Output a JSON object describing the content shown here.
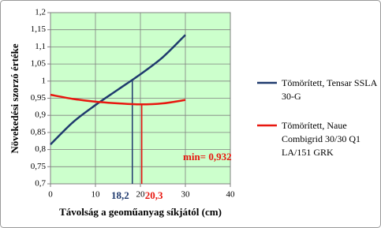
{
  "chart_data": {
    "type": "line",
    "x_label": "Távolság a geoműanyag síkjától (cm)",
    "y_label": "Növekedési szorzó értéke",
    "x": [
      0,
      5,
      10,
      15,
      20,
      25,
      30
    ],
    "series": [
      {
        "name": "Tömörített, Tensar SSLA 30-G",
        "color": "#1f3a6e",
        "values": [
          0.815,
          0.88,
          0.93,
          0.975,
          1.02,
          1.07,
          1.135
        ],
        "marker": {
          "value": 18.2,
          "label": "18,2"
        }
      },
      {
        "name": "Tömörített, Naue Combigrid 30/30 Q1 LA/151 GRK",
        "color": "#e8170f",
        "values": [
          0.96,
          0.948,
          0.94,
          0.935,
          0.932,
          0.935,
          0.945
        ],
        "marker": {
          "value": 20.3,
          "label": "20,3"
        }
      }
    ],
    "annotation": "min= 0,932",
    "xlim": [
      0,
      40
    ],
    "xticks": [
      0,
      10,
      20,
      30,
      40
    ],
    "ylim": [
      0.7,
      1.2
    ],
    "yticks": [
      {
        "value": 0.7,
        "label": "0,7"
      },
      {
        "value": 0.75,
        "label": "0,75"
      },
      {
        "value": 0.8,
        "label": "0,8"
      },
      {
        "value": 0.85,
        "label": "0,85"
      },
      {
        "value": 0.9,
        "label": "0,9"
      },
      {
        "value": 0.95,
        "label": "0,95"
      },
      {
        "value": 1,
        "label": "1"
      },
      {
        "value": 1.05,
        "label": "1,05"
      },
      {
        "value": 1.1,
        "label": "1,1"
      },
      {
        "value": 1.15,
        "label": "1,15"
      },
      {
        "value": 1.2,
        "label": "1,2"
      }
    ],
    "grid": true,
    "plot_background": "#ccffcc"
  }
}
